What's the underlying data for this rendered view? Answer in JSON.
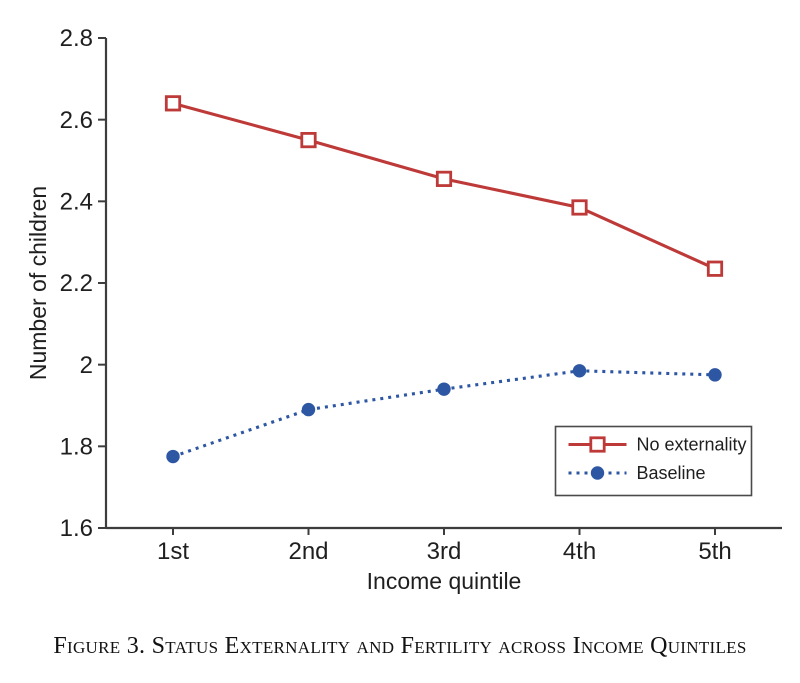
{
  "caption": "Figure 3. Status Externality and Fertility across Income Quintiles",
  "chart_data": {
    "type": "line",
    "categories": [
      "1st",
      "2nd",
      "3rd",
      "4th",
      "5th"
    ],
    "series": [
      {
        "name": "No externality",
        "values": [
          2.64,
          2.55,
          2.455,
          2.385,
          2.235
        ],
        "color": "#bd3a39",
        "line_style": "solid",
        "marker": "open-square"
      },
      {
        "name": "Baseline",
        "values": [
          1.775,
          1.89,
          1.94,
          1.985,
          1.975
        ],
        "color": "#2d56a3",
        "line_style": "dotted",
        "marker": "filled-circle"
      }
    ],
    "xlabel": "Income quintile",
    "ylabel": "Number of children",
    "ylim": [
      1.6,
      2.8
    ],
    "yticks": [
      1.6,
      1.8,
      2,
      2.2,
      2.4,
      2.6,
      2.8
    ],
    "grid": false,
    "legend_position": "lower right",
    "axis_color": "#3d3d3d",
    "text_color": "#1f1f1f",
    "legend_border_color": "#4a4a4a"
  }
}
